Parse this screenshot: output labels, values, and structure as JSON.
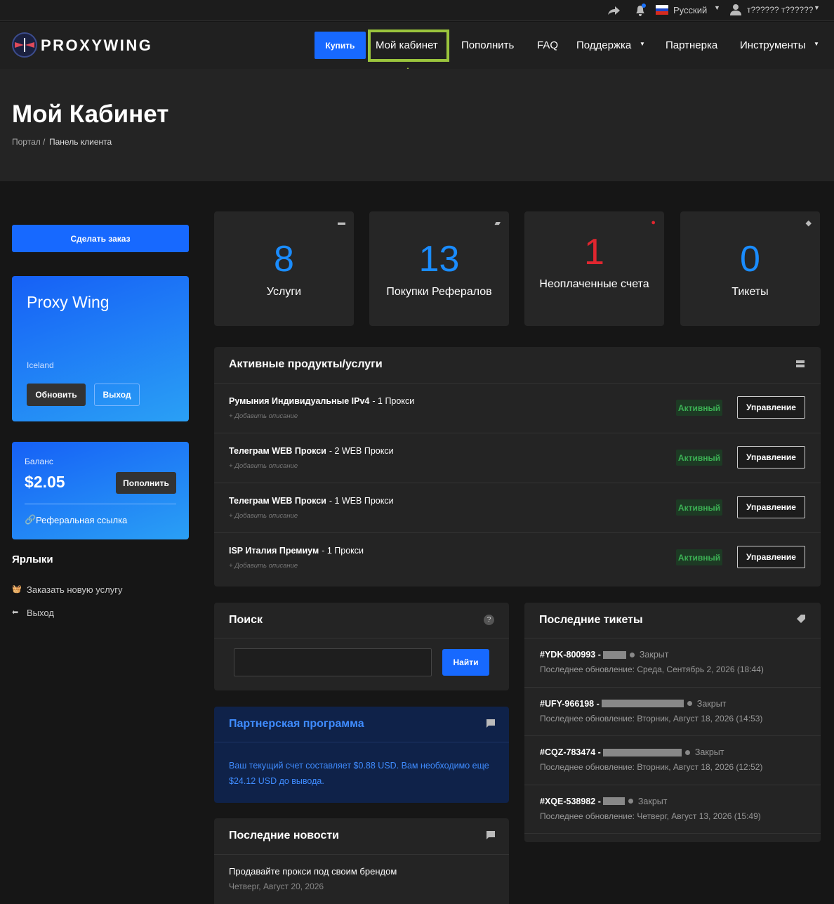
{
  "topbar": {
    "language": "Русский",
    "user": "т?????? т??????"
  },
  "nav": {
    "logo": "PROXYWING",
    "items": [
      "Купить",
      "Мой кабинет",
      "Пополнить",
      "FAQ",
      "Поддержка",
      "Партнерка",
      "Инструменты"
    ]
  },
  "header": {
    "title": "Мой Кабинет",
    "breadcrumb": [
      "Портал",
      "Панель клиента"
    ]
  },
  "sidebar": {
    "order_button": "Сделать заказ",
    "account": {
      "name": "Proxy Wing",
      "location": "Iceland",
      "update": "Обновить",
      "logout": "Выход"
    },
    "balance": {
      "label": "Баланс",
      "amount": "$2.05",
      "topup": "Пополнить",
      "referral": "Реферальная ссылка"
    },
    "shortcuts": {
      "title": "Ярлыки",
      "items": [
        "Заказать новую услугу",
        "Выход"
      ]
    }
  },
  "stats": [
    {
      "value": 8,
      "label": "Услуги"
    },
    {
      "value": 13,
      "label": "Покупки Рефералов"
    },
    {
      "value": 1,
      "label": "Неоплаченные счета"
    },
    {
      "value": 0,
      "label": "Тикеты"
    }
  ],
  "products": {
    "title": "Активные продукты/услуги",
    "rows": [
      {
        "name": "Румыния Индивидуальные IPv4",
        "detail": "- 1 Прокси",
        "add_description": "+ Добавить описание",
        "status": "Активный",
        "action": "Управление"
      },
      {
        "name": "Телеграм WEB Прокси",
        "detail": "- 2 WEB Прокси",
        "add_description": "+ Добавить описание",
        "status": "Активный",
        "action": "Управление"
      },
      {
        "name": "Телеграм WEB Прокси",
        "detail": "- 1 WEB Прокси",
        "add_description": "+ Добавить описание",
        "status": "Активный",
        "action": "Управление"
      },
      {
        "name": "ISP Италия Премиум",
        "detail": "- 1 Прокси",
        "add_description": "+ Добавить описание",
        "status": "Активный",
        "action": "Управление"
      }
    ]
  },
  "search": {
    "title": "Поиск",
    "button": "Найти"
  },
  "partner": {
    "title": "Партнерская программа",
    "text": "Ваш текущий счет составляет $0.88 USD. Вам необходимо еще $24.12 USD до вывода."
  },
  "news": {
    "title": "Последние новости",
    "items": [
      {
        "title": "Продавайте прокси под своим брендом",
        "date": "Четверг, Август 20, 2026"
      }
    ]
  },
  "tickets": {
    "title": "Последние тикеты",
    "rows": [
      {
        "id": "#YDK-800993 -",
        "status": "Закрыт",
        "updated": "Последнее обновление: Среда, Сентябрь 2, 2026 (18:44)"
      },
      {
        "id": "#UFY-966198 -",
        "status": "Закрыт",
        "updated": "Последнее обновление: Вторник, Август 18, 2026 (14:53)"
      },
      {
        "id": "#CQZ-783474 -",
        "status": "Закрыт",
        "updated": "Последнее обновление: Вторник, Август 18, 2026 (12:52)"
      },
      {
        "id": "#XQE-538982 -",
        "status": "Закрыт",
        "updated": "Последнее обновление: Четверг, Август 13, 2026 (15:49)"
      }
    ]
  }
}
